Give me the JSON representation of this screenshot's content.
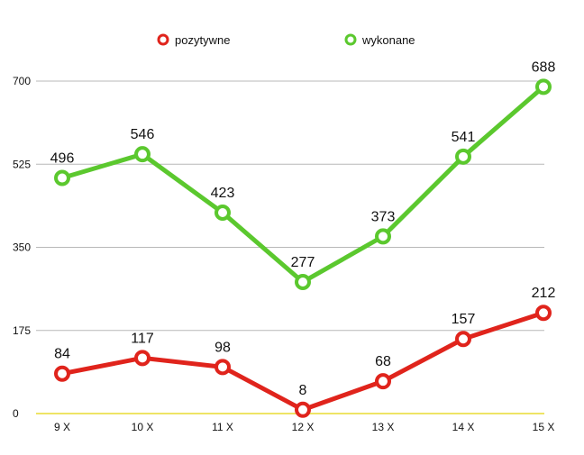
{
  "chart_data": {
    "type": "line",
    "categories": [
      "9 X",
      "10 X",
      "11 X",
      "12 X",
      "13 X",
      "14 X",
      "15 X"
    ],
    "series": [
      {
        "name": "pozytywne",
        "values": [
          84,
          117,
          98,
          8,
          68,
          157,
          212
        ],
        "color": "#e0241c"
      },
      {
        "name": "wykonane",
        "values": [
          496,
          546,
          423,
          277,
          373,
          541,
          688
        ],
        "color": "#5bc82e"
      }
    ],
    "ylim": [
      0,
      700
    ],
    "yticks": [
      "0",
      "175",
      "350",
      "525",
      "700"
    ],
    "grid": true,
    "legend": "top",
    "baseline_color": "#e8dc32",
    "grid_color": "#b8b8b8"
  }
}
